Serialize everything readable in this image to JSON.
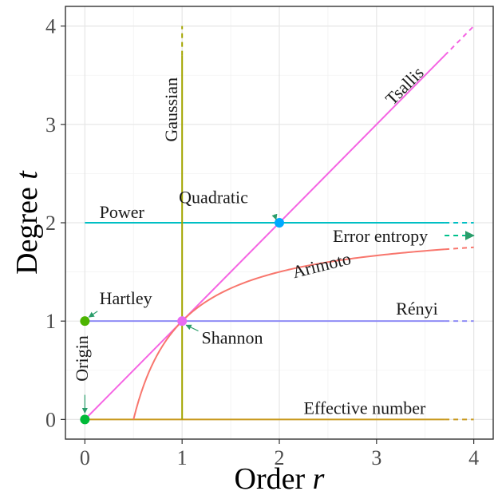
{
  "chart_data": {
    "type": "line",
    "xlabel": "Order",
    "xlabel_var": "r",
    "ylabel": "Degree",
    "ylabel_var": "t",
    "xlim": [
      -0.2,
      4.2
    ],
    "ylim": [
      -0.2,
      4.2
    ],
    "xticks": [
      "0",
      "1",
      "2",
      "3",
      "4"
    ],
    "yticks": [
      "0",
      "1",
      "2",
      "3",
      "4"
    ],
    "grid": true,
    "series": [
      {
        "name": "Tsallis",
        "color": "#f564e3",
        "kind": "line",
        "points": [
          [
            0,
            0
          ],
          [
            4,
            4
          ]
        ],
        "dashed_from_x": 3.7
      },
      {
        "name": "Power",
        "color": "#00bfc4",
        "kind": "hline",
        "y": 2,
        "x_start": 0,
        "dashed_from_x": 3.7,
        "x_end": 4
      },
      {
        "name": "Rényi",
        "color": "#8f8cf5",
        "kind": "hline",
        "y": 1,
        "x_start": 0,
        "dashed_from_x": 3.7,
        "x_end": 4
      },
      {
        "name": "Effective number",
        "color": "#c99a1f",
        "kind": "hline",
        "y": 0,
        "x_start": 0,
        "dashed_from_x": 3.7,
        "x_end": 4
      },
      {
        "name": "Gaussian",
        "color": "#a3a500",
        "kind": "vline",
        "x": 1,
        "y_start": 0,
        "dashed_from_y": 3.7,
        "y_end": 4
      },
      {
        "name": "Arimoto",
        "color": "#f8766d",
        "kind": "curve",
        "formula": "t = 2 - 1/r for r >= 0.5",
        "x_start": 0.5,
        "dashed_from_x": 3.7,
        "x_end": 4
      },
      {
        "name": "Error entropy",
        "color": "#00c08b",
        "kind": "arrow",
        "y": 1.87,
        "x_start": 3.7,
        "x_end": 4
      }
    ],
    "points": [
      {
        "name": "Origin",
        "x": 0,
        "y": 0,
        "color": "#00ba38"
      },
      {
        "name": "Hartley",
        "x": 0,
        "y": 1,
        "color": "#4cb400"
      },
      {
        "name": "Shannon",
        "x": 1,
        "y": 1,
        "color": "#e76bf3"
      },
      {
        "name": "Quadratic",
        "x": 2,
        "y": 2,
        "color": "#00a9ff"
      }
    ],
    "annotations": [
      "Tsallis",
      "Gaussian",
      "Power",
      "Quadratic",
      "Error entropy",
      "Arimoto",
      "Hartley",
      "Rényi",
      "Shannon",
      "Origin",
      "Effective number"
    ]
  }
}
